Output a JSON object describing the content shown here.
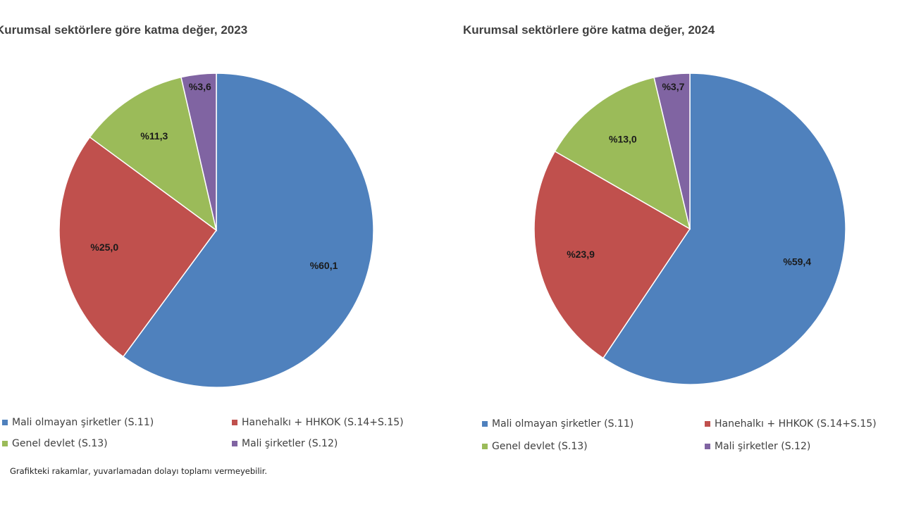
{
  "colors": {
    "blue": "#4f81bd",
    "red": "#c0504d",
    "green": "#9bbb59",
    "purple": "#8064a2",
    "edge": "#ffffff"
  },
  "chart_data": [
    {
      "type": "pie",
      "title": "Kurumsal sektörlere göre katma değer, 2023",
      "slices": [
        {
          "name": "Mali olmayan şirketler (S.11)",
          "value": 60.1,
          "label": "%60,1",
          "color": "#4f81bd"
        },
        {
          "name": "Hanehalkı + HHKOK (S.14+S.15)",
          "value": 25.0,
          "label": "%25,0",
          "color": "#c0504d"
        },
        {
          "name": "Genel devlet (S.13)",
          "value": 11.3,
          "label": "%11,3",
          "color": "#9bbb59"
        },
        {
          "name": "Mali şirketler (S.12)",
          "value": 3.6,
          "label": "%3,6",
          "color": "#8064a2"
        }
      ],
      "legend_position": "bottom"
    },
    {
      "type": "pie",
      "title": "Kurumsal sektörlere göre katma değer, 2024",
      "slices": [
        {
          "name": "Mali olmayan şirketler (S.11)",
          "value": 59.4,
          "label": "%59,4",
          "color": "#4f81bd"
        },
        {
          "name": "Hanehalkı + HHKOK (S.14+S.15)",
          "value": 23.9,
          "label": "%23,9",
          "color": "#c0504d"
        },
        {
          "name": "Genel devlet (S.13)",
          "value": 13.0,
          "label": "%13,0",
          "color": "#9bbb59"
        },
        {
          "name": "Mali şirketler (S.12)",
          "value": 3.7,
          "label": "%3,7",
          "color": "#8064a2"
        }
      ],
      "legend_position": "bottom"
    }
  ],
  "legend": {
    "items": [
      {
        "label": "Mali olmayan şirketler (S.11)",
        "color": "#4f81bd"
      },
      {
        "label": "Hanehalkı + HHKOK (S.14+S.15)",
        "color": "#c0504d"
      },
      {
        "label": "Genel devlet (S.13)",
        "color": "#9bbb59"
      },
      {
        "label": "Mali şirketler (S.12)",
        "color": "#8064a2"
      }
    ]
  },
  "note": "Grafikteki rakamlar, yuvarlamadan dolayı toplamı vermeyebilir."
}
